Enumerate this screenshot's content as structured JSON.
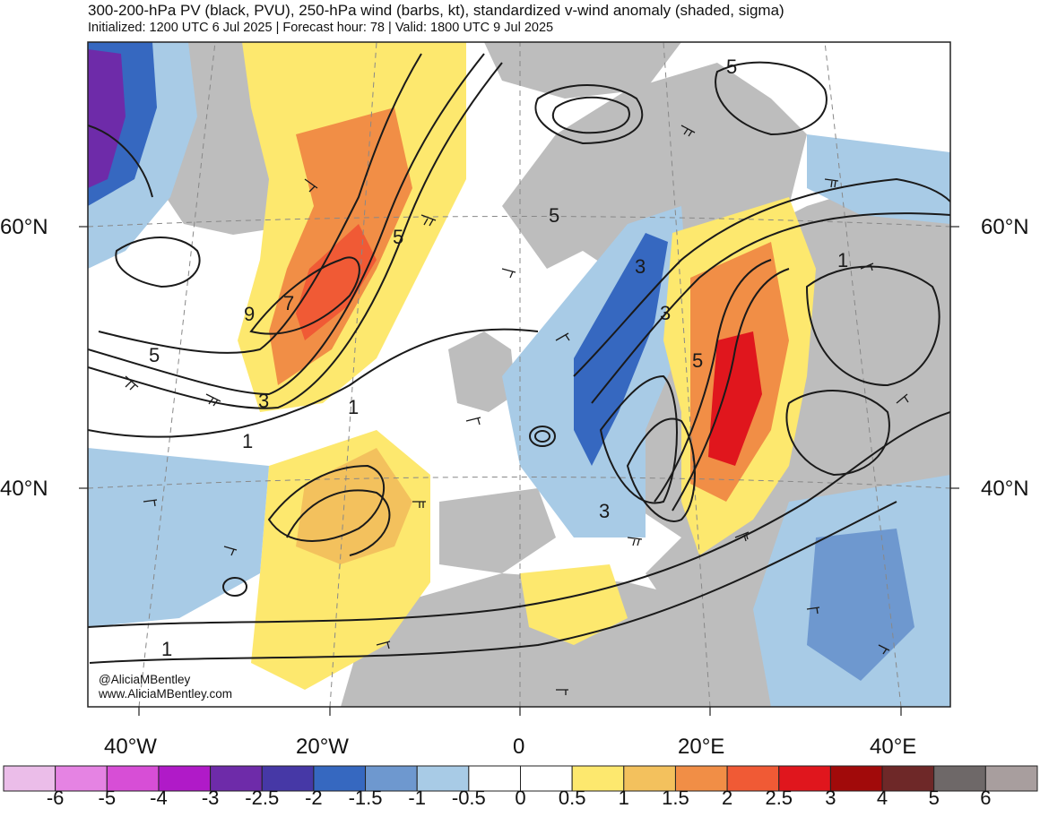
{
  "header": {
    "title": "300-200-hPa PV (black, PVU), 250-hPa wind (barbs, kt), standardized v-wind anomaly (shaded, sigma)",
    "subtitle": "Initialized: 1200 UTC 6 Jul 2025 | Forecast hour: 78 | Valid: 1800 UTC 9 Jul 2025"
  },
  "map": {
    "region": "North Atlantic and Europe",
    "lat_labels": {
      "n60_left": "60°N",
      "n60_right": "60°N",
      "n40_left": "40°N",
      "n40_right": "40°N"
    },
    "lon_labels": {
      "w40": "40°W",
      "w20": "20°W",
      "zero": "0",
      "e20": "20°E",
      "e40": "40°E"
    },
    "contour_labels": [
      "5",
      "7",
      "9",
      "5",
      "3",
      "1",
      "5",
      "5",
      "3",
      "3",
      "5",
      "3",
      "1",
      "1",
      "1"
    ],
    "colors": {
      "land": "#bdbdbd",
      "ocean": "#ffffff",
      "contour": "#1a1a1a"
    }
  },
  "credits": {
    "handle": "@AliciaMBentley",
    "website": "www.AliciaMBentley.com"
  },
  "colorbar": {
    "colors": [
      "#ebbde9",
      "#e583e3",
      "#d74ed6",
      "#b01ac8",
      "#6e2ba9",
      "#4638a6",
      "#3668c0",
      "#6e98cf",
      "#a8cbe6",
      "#ffffff",
      "#ffffff",
      "#fde86e",
      "#f3c15d",
      "#f18e46",
      "#f05a35",
      "#e0161d",
      "#a10a0a",
      "#6e2828",
      "#6e6868",
      "#a89e9e"
    ],
    "ticks": [
      "-6",
      "-5",
      "-4",
      "-3",
      "-2.5",
      "-2",
      "-1.5",
      "-1",
      "-0.5",
      "0",
      "0.5",
      "1",
      "1.5",
      "2",
      "2.5",
      "3",
      "4",
      "5",
      "6"
    ]
  }
}
